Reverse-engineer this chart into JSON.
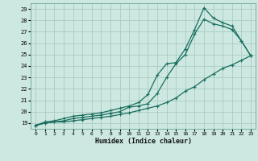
{
  "xlabel": "Humidex (Indice chaleur)",
  "bg_color": "#cce8e0",
  "grid_color": "#aaccc4",
  "line_color": "#1a6e60",
  "xlim": [
    -0.5,
    23.5
  ],
  "ylim": [
    18.5,
    29.5
  ],
  "xticks": [
    0,
    1,
    2,
    3,
    4,
    5,
    6,
    7,
    8,
    9,
    10,
    11,
    12,
    13,
    14,
    15,
    16,
    17,
    18,
    19,
    20,
    21,
    22,
    23
  ],
  "yticks": [
    19,
    20,
    21,
    22,
    23,
    24,
    25,
    26,
    27,
    28,
    29
  ],
  "line1_x": [
    0,
    1,
    2,
    3,
    4,
    5,
    6,
    7,
    8,
    9,
    10,
    11,
    12,
    13,
    14,
    15,
    16,
    17,
    18,
    19,
    20,
    21,
    22,
    23
  ],
  "line1_y": [
    18.8,
    19.1,
    19.2,
    19.4,
    19.6,
    19.7,
    19.8,
    19.9,
    20.1,
    20.3,
    20.5,
    20.8,
    21.5,
    23.2,
    24.2,
    24.3,
    25.5,
    27.2,
    29.1,
    28.2,
    27.8,
    27.5,
    26.2,
    24.9
  ],
  "line2_x": [
    0,
    1,
    2,
    3,
    4,
    5,
    6,
    7,
    8,
    9,
    10,
    11,
    12,
    13,
    14,
    15,
    16,
    17,
    18,
    19,
    20,
    21,
    22,
    23
  ],
  "line2_y": [
    18.8,
    19.0,
    19.1,
    19.2,
    19.4,
    19.5,
    19.6,
    19.7,
    19.85,
    20.0,
    20.4,
    20.5,
    20.7,
    21.6,
    23.0,
    24.2,
    25.0,
    26.8,
    28.1,
    27.7,
    27.5,
    27.2,
    26.2,
    24.9
  ],
  "line3_x": [
    0,
    1,
    2,
    3,
    4,
    5,
    6,
    7,
    8,
    9,
    10,
    11,
    12,
    13,
    14,
    15,
    16,
    17,
    18,
    19,
    20,
    21,
    22,
    23
  ],
  "line3_y": [
    18.8,
    19.0,
    19.1,
    19.1,
    19.2,
    19.3,
    19.4,
    19.5,
    19.6,
    19.75,
    19.9,
    20.1,
    20.3,
    20.5,
    20.8,
    21.2,
    21.8,
    22.2,
    22.8,
    23.3,
    23.8,
    24.1,
    24.5,
    24.9
  ]
}
